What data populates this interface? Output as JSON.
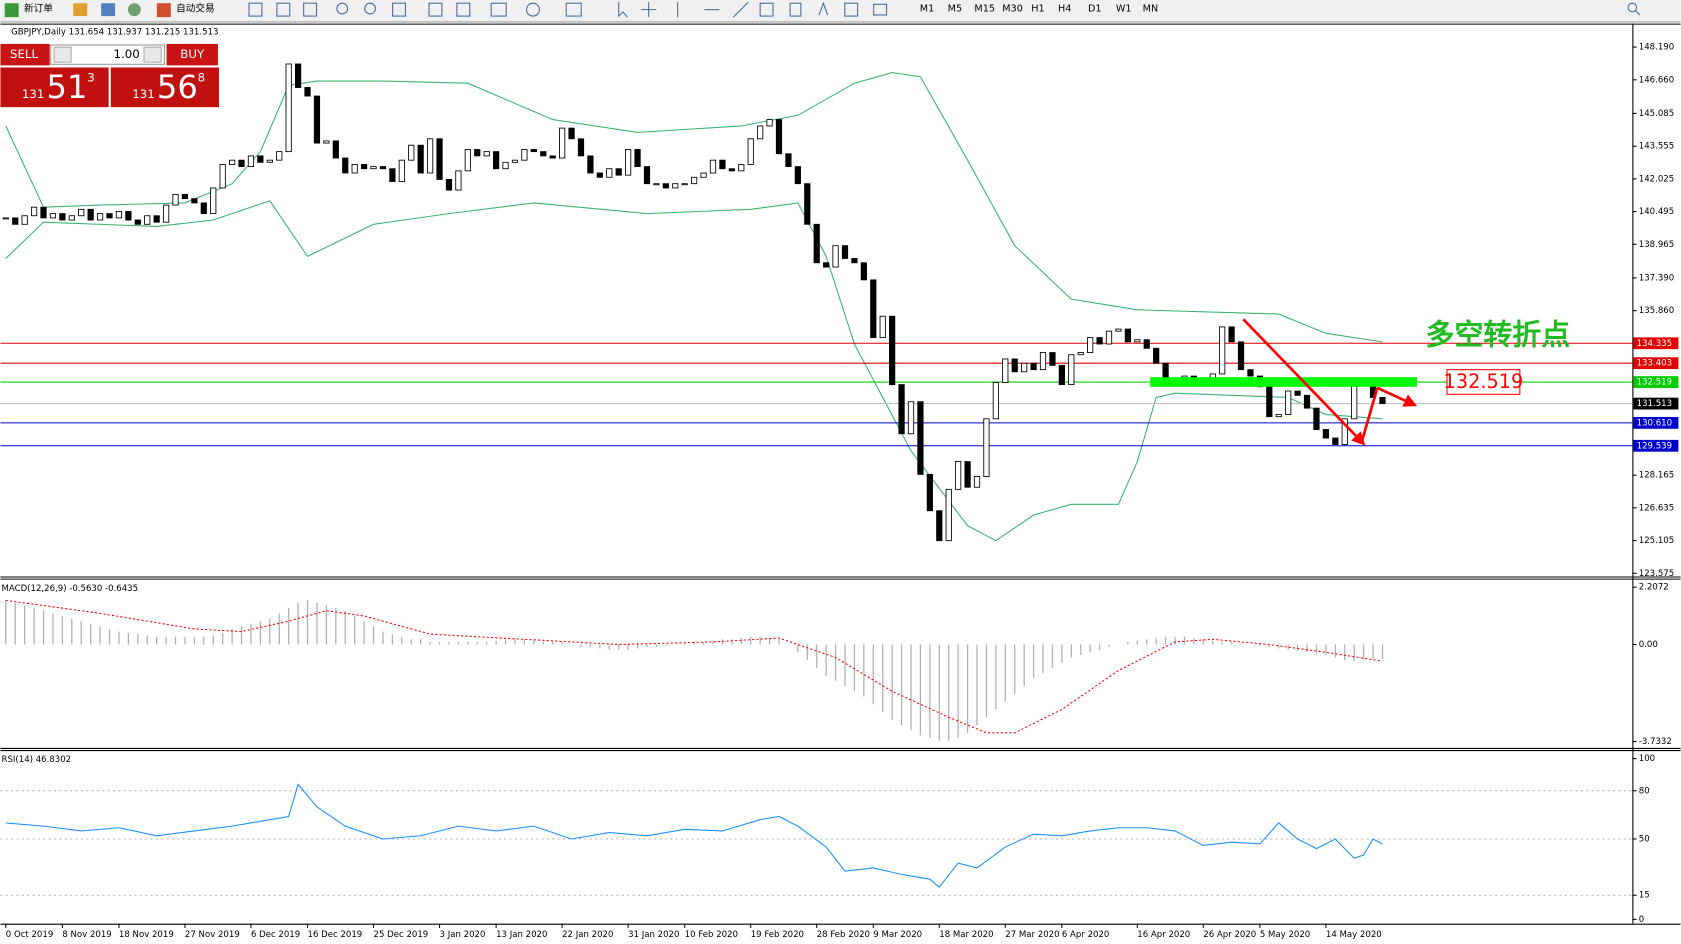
{
  "toolbar": {
    "new_order": "新订单",
    "auto_trading": "自动交易",
    "timeframes": [
      "M1",
      "M5",
      "M15",
      "M30",
      "H1",
      "H4",
      "D1",
      "W1",
      "MN"
    ]
  },
  "trade_panel": {
    "sell": "SELL",
    "lot": "1.00",
    "buy": "BUY",
    "sell_price": {
      "prefix": "131",
      "big": "51",
      "sup": "3"
    },
    "buy_price": {
      "prefix": "131",
      "big": "56",
      "sup": "8"
    }
  },
  "annotations": {
    "title": "多空转折点",
    "level": "132.519"
  },
  "chart_data": [
    {
      "type": "candlestick",
      "title": "GBPJPY,Daily  131.654 131.937 131.215 131.513",
      "close": [
        140.2,
        139.9,
        140.3,
        140.7,
        140.2,
        140.4,
        140.1,
        140.3,
        140.6,
        140.1,
        140.4,
        140.2,
        140.5,
        140.1,
        139.9,
        140.3,
        140.0,
        140.8,
        141.3,
        141.1,
        140.9,
        140.4,
        141.6,
        142.7,
        142.9,
        142.6,
        143.1,
        142.8,
        142.9,
        143.3,
        147.4,
        146.3,
        145.9,
        143.7,
        143.8,
        143.0,
        142.3,
        142.7,
        142.5,
        142.6,
        142.5,
        141.9,
        142.9,
        143.6,
        142.3,
        143.9,
        142.0,
        141.5,
        142.4,
        143.4,
        143.1,
        143.3,
        142.5,
        142.8,
        142.9,
        143.4,
        143.3,
        143.1,
        143.0,
        144.4,
        143.9,
        143.1,
        142.3,
        142.1,
        142.5,
        142.2,
        143.4,
        142.6,
        141.8,
        141.8,
        141.6,
        141.8,
        141.8,
        142.1,
        142.3,
        142.9,
        142.5,
        142.4,
        142.7,
        143.9,
        144.5,
        144.8,
        143.2,
        142.6,
        141.8,
        139.9,
        138.1,
        137.9,
        138.9,
        138.3,
        138.1,
        137.3,
        134.6,
        135.6,
        132.4,
        130.1,
        131.6,
        128.2,
        126.5,
        125.1,
        127.5,
        128.8,
        127.6,
        128.1,
        130.8,
        132.5,
        133.6,
        133.0,
        133.4,
        133.1,
        133.9,
        133.3,
        132.4,
        133.8,
        133.9,
        134.6,
        134.3,
        134.9,
        135.0,
        134.4,
        134.5,
        134.1,
        133.4,
        132.7,
        132.5,
        132.8,
        132.6,
        132.4,
        132.9,
        135.1,
        134.4,
        133.1,
        132.8,
        132.3,
        130.9,
        131.0,
        132.1,
        131.9,
        131.3,
        130.3,
        129.9,
        129.6,
        130.8,
        132.4,
        132.5,
        131.8,
        131.513
      ],
      "series": [
        {
          "color": "#3cb371",
          "x": [
            0,
            4,
            10,
            19,
            24,
            27,
            30,
            33,
            40,
            49,
            58,
            67,
            78,
            84,
            90,
            94,
            97,
            102,
            107,
            113,
            120,
            135,
            140,
            146
          ],
          "values": [
            144.5,
            140.7,
            140.8,
            140.9,
            141.8,
            143.3,
            146.4,
            146.6,
            146.6,
            146.5,
            144.8,
            144.2,
            144.5,
            145.0,
            146.5,
            147.0,
            146.8,
            142.9,
            138.9,
            136.4,
            135.9,
            135.7,
            134.8,
            134.4
          ]
        },
        {
          "color": "#3cb371",
          "x": [
            0,
            4,
            16,
            22,
            28,
            32,
            39,
            47,
            56,
            68,
            79,
            84,
            87,
            90,
            96,
            102,
            105,
            109,
            113,
            118,
            120,
            122,
            124,
            136,
            140,
            146
          ],
          "values": [
            138.3,
            140.0,
            139.8,
            140.1,
            141.0,
            138.4,
            139.9,
            140.4,
            140.9,
            140.4,
            140.6,
            140.9,
            138.4,
            134.3,
            129.3,
            125.8,
            125.1,
            126.3,
            126.8,
            126.8,
            128.8,
            131.8,
            132.0,
            131.8,
            131.0,
            130.8
          ]
        }
      ],
      "hlines": [
        {
          "value": 134.335,
          "color": "#e00000"
        },
        {
          "value": 133.403,
          "color": "#e00000"
        },
        {
          "value": 132.519,
          "color": "#00cc00"
        },
        {
          "value": 131.513,
          "color": "#000000"
        },
        {
          "value": 130.61,
          "label": "130.610",
          "color": "#0000cc"
        },
        {
          "value": 129.539,
          "color": "#0000cc"
        }
      ],
      "ylim": [
        123.475,
        149.19
      ],
      "yticks": [
        {
          "value": 148.19,
          "label": "148.190"
        },
        {
          "value": 146.66,
          "label": "146.660"
        },
        145.085,
        143.555,
        142.025,
        140.495,
        138.965,
        {
          "value": 137.39,
          "label": "137.390"
        },
        {
          "value": 135.86,
          "label": "135.860"
        },
        128.165,
        126.635,
        125.105,
        123.575
      ],
      "xticks": [
        {
          "value": 0,
          "label": "0 Oct 2019"
        },
        {
          "value": 6,
          "label": "8 Nov 2019"
        },
        {
          "value": 12,
          "label": "18 Nov 2019"
        },
        {
          "value": 19,
          "label": "27 Nov 2019"
        },
        {
          "value": 26,
          "label": "6 Dec 2019"
        },
        {
          "value": 32,
          "label": "16 Dec 2019"
        },
        {
          "value": 39,
          "label": "25 Dec 2019"
        },
        {
          "value": 46,
          "label": "3 Jan 2020"
        },
        {
          "value": 52,
          "label": "13 Jan 2020"
        },
        {
          "value": 59,
          "label": "22 Jan 2020"
        },
        {
          "value": 66,
          "label": "31 Jan 2020"
        },
        {
          "value": 72,
          "label": "10 Feb 2020"
        },
        {
          "value": 79,
          "label": "19 Feb 2020"
        },
        {
          "value": 86,
          "label": "28 Feb 2020"
        },
        {
          "value": 92,
          "label": "9 Mar 2020"
        },
        {
          "value": 99,
          "label": "18 Mar 2020"
        },
        {
          "value": 106,
          "label": "27 Mar 2020"
        },
        {
          "value": 112,
          "label": "6 Apr 2020"
        },
        {
          "value": 120,
          "label": "16 Apr 2020"
        },
        {
          "value": 127,
          "label": "26 Apr 2020"
        },
        {
          "value": 133,
          "label": "5 May 2020"
        },
        {
          "value": 140,
          "label": "14 May 2020"
        }
      ]
    },
    {
      "type": "macd",
      "title": "MACD(12,26,9) -0.5630 -0.6435",
      "color": "#b0b0b0",
      "values": [
        1.7,
        1.6,
        1.5,
        1.4,
        1.3,
        1.2,
        1.1,
        1.0,
        0.9,
        0.8,
        0.7,
        0.6,
        0.5,
        0.45,
        0.4,
        0.35,
        0.3,
        0.3,
        0.3,
        0.3,
        0.3,
        0.3,
        0.35,
        0.45,
        0.6,
        0.7,
        0.8,
        0.9,
        1.0,
        1.2,
        1.4,
        1.6,
        1.7,
        1.6,
        1.5,
        1.4,
        1.3,
        1.1,
        0.9,
        0.7,
        0.5,
        0.4,
        0.3,
        0.2,
        0.2,
        0.1,
        0.1,
        0.1,
        0.1,
        0.1,
        0.1,
        0.1,
        0.15,
        0.2,
        0.2,
        0.2,
        0.15,
        0.1,
        0.1,
        0.1,
        0.0,
        -0.1,
        -0.1,
        -0.15,
        -0.2,
        -0.2,
        -0.2,
        -0.15,
        -0.1,
        -0.1,
        -0.05,
        0.0,
        0.05,
        0.1,
        0.1,
        0.15,
        0.2,
        0.2,
        0.25,
        0.3,
        0.3,
        0.25,
        0.2,
        0.0,
        -0.3,
        -0.6,
        -0.9,
        -1.2,
        -1.4,
        -1.6,
        -1.8,
        -2.0,
        -2.3,
        -2.6,
        -2.9,
        -3.1,
        -3.3,
        -3.5,
        -3.6,
        -3.7,
        -3.7,
        -3.6,
        -3.4,
        -3.1,
        -2.8,
        -2.5,
        -2.2,
        -1.9,
        -1.6,
        -1.3,
        -1.1,
        -0.9,
        -0.7,
        -0.5,
        -0.4,
        -0.3,
        -0.2,
        -0.1,
        0.0,
        0.1,
        0.15,
        0.2,
        0.25,
        0.3,
        0.3,
        0.3,
        0.25,
        0.2,
        0.15,
        0.1,
        0.1,
        0.05,
        0.0,
        -0.05,
        -0.1,
        -0.15,
        -0.2,
        -0.25,
        -0.3,
        -0.35,
        -0.4,
        -0.5,
        -0.6,
        -0.65,
        -0.6,
        -0.55,
        -0.563
      ],
      "signal": {
        "color": "#ff0000",
        "x": [
          0,
          10,
          20,
          25,
          30,
          34,
          38,
          45,
          55,
          65,
          75,
          82,
          88,
          94,
          100,
          104,
          107,
          112,
          118,
          124,
          128,
          134,
          140,
          146
        ],
        "values": [
          1.7,
          1.2,
          0.6,
          0.5,
          0.9,
          1.3,
          1.1,
          0.4,
          0.2,
          0.0,
          0.1,
          0.25,
          -0.5,
          -1.8,
          -2.8,
          -3.4,
          -3.4,
          -2.5,
          -1.0,
          0.1,
          0.2,
          0.0,
          -0.3,
          -0.6435
        ]
      },
      "ylim": [
        -3.7332,
        2.2072
      ],
      "yticks": [
        2.2072,
        {
          "value": 0,
          "label": "0.00"
        },
        -3.7332
      ]
    },
    {
      "type": "line",
      "title": "RSI(14) 46.8302",
      "color": "#1e90ff",
      "x": [
        0,
        4,
        8,
        12,
        16,
        20,
        24,
        28,
        30,
        31,
        33,
        36,
        40,
        44,
        48,
        52,
        56,
        60,
        64,
        68,
        72,
        76,
        80,
        82,
        84,
        87,
        89,
        92,
        95,
        98,
        99,
        101,
        103,
        106,
        109,
        112,
        115,
        118,
        121,
        124,
        127,
        130,
        133,
        135,
        137,
        139,
        141,
        143,
        144,
        145,
        146
      ],
      "values": [
        60,
        58,
        55,
        57,
        52,
        55,
        58,
        62,
        64,
        84,
        70,
        58,
        50,
        52,
        58,
        55,
        58,
        50,
        54,
        52,
        56,
        55,
        62,
        64,
        58,
        45,
        30,
        32,
        28,
        25,
        20,
        35,
        32,
        45,
        53,
        52,
        55,
        57,
        57,
        55,
        46,
        48,
        47,
        60,
        50,
        44,
        50,
        38,
        40,
        50,
        46.8302
      ],
      "ylim": [
        0,
        100
      ],
      "yticks": [
        100,
        80,
        50,
        15,
        0
      ]
    }
  ]
}
